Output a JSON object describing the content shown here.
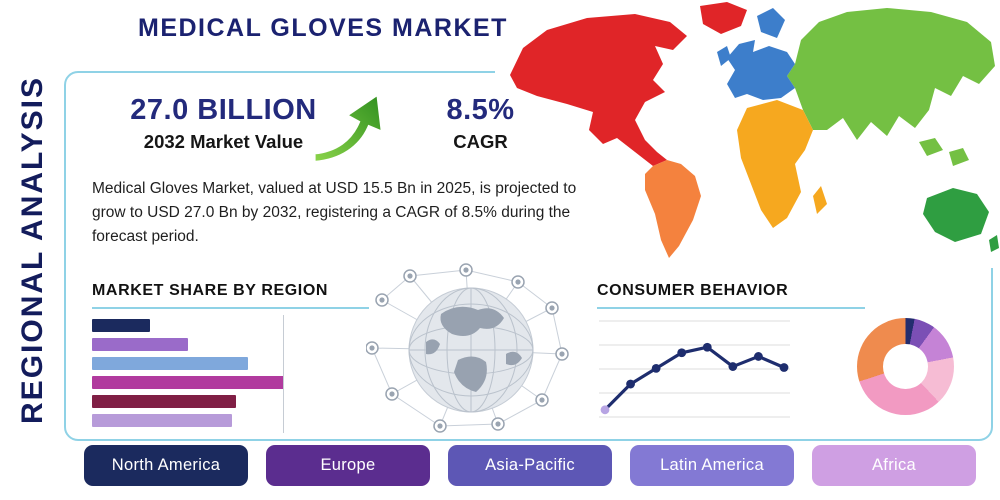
{
  "page": {
    "title": "MEDICAL GLOVES MARKET",
    "side_label": "REGIONAL ANALYSIS"
  },
  "stats": {
    "market_value": "27.0 BILLION",
    "market_value_caption": "2032 Market Value",
    "cagr": "8.5%",
    "cagr_caption": "CAGR"
  },
  "description": "Medical Gloves Market, valued at USD 15.5 Bn in 2025, is projected to grow to USD 27.0 Bn by 2032, registering a CAGR of 8.5% during the forecast period.",
  "sections": {
    "market_share_heading": "MARKET SHARE BY REGION",
    "consumer_behavior_heading": "CONSUMER BEHAVIOR"
  },
  "regions": [
    {
      "label": "North America",
      "color": "#1b2a5e"
    },
    {
      "label": "Europe",
      "color": "#5b2d8f"
    },
    {
      "label": "Asia-Pacific",
      "color": "#5d57b5"
    },
    {
      "label": "Latin America",
      "color": "#8379d4"
    },
    {
      "label": "Africa",
      "color": "#cf9fe3"
    }
  ],
  "accent": {
    "title-navy": "#1b2270",
    "stat-navy": "#232a7c",
    "border-blue": "#8fd2e6",
    "text-dark": "#1f1f1f",
    "arrow-green-1": "#8bd44a",
    "arrow-green-2": "#2f8f1f"
  },
  "map": {
    "colors": {
      "north_america": "#e02528",
      "greenland": "#e02528",
      "south_america": "#f4823e",
      "europe": "#3d7ecb",
      "africa": "#f6a81f",
      "asia": "#74c043",
      "australia": "#2f9e41"
    }
  },
  "chart_data": [
    {
      "type": "bar",
      "title": "MARKET SHARE BY REGION",
      "orientation": "horizontal",
      "values": [
        30,
        50,
        81,
        100,
        75,
        73
      ],
      "unit": "relative bar length (bars unlabeled)",
      "colors": [
        "#1b2a5e",
        "#9a6bc9",
        "#7fa8dc",
        "#b13a9e",
        "#801f45",
        "#b79bd9"
      ],
      "grid": true
    },
    {
      "type": "line",
      "title": "CONSUMER BEHAVIOR",
      "x": [
        1,
        2,
        3,
        4,
        5,
        6,
        7,
        8
      ],
      "values": [
        10,
        38,
        55,
        72,
        78,
        57,
        68,
        56
      ],
      "ylim": [
        0,
        100
      ],
      "grid": true,
      "line_color": "#1e2d6e",
      "first_marker_color": "#b7a4e3"
    },
    {
      "type": "pie",
      "donut": true,
      "slices": [
        {
          "value": 3,
          "color": "#232d6e"
        },
        {
          "value": 7,
          "color": "#7b4fb5"
        },
        {
          "value": 12,
          "color": "#c583d6"
        },
        {
          "value": 16,
          "color": "#f6bcd4"
        },
        {
          "value": 32,
          "color": "#f29ac2"
        },
        {
          "value": 30,
          "color": "#ef8b4e"
        }
      ]
    }
  ]
}
